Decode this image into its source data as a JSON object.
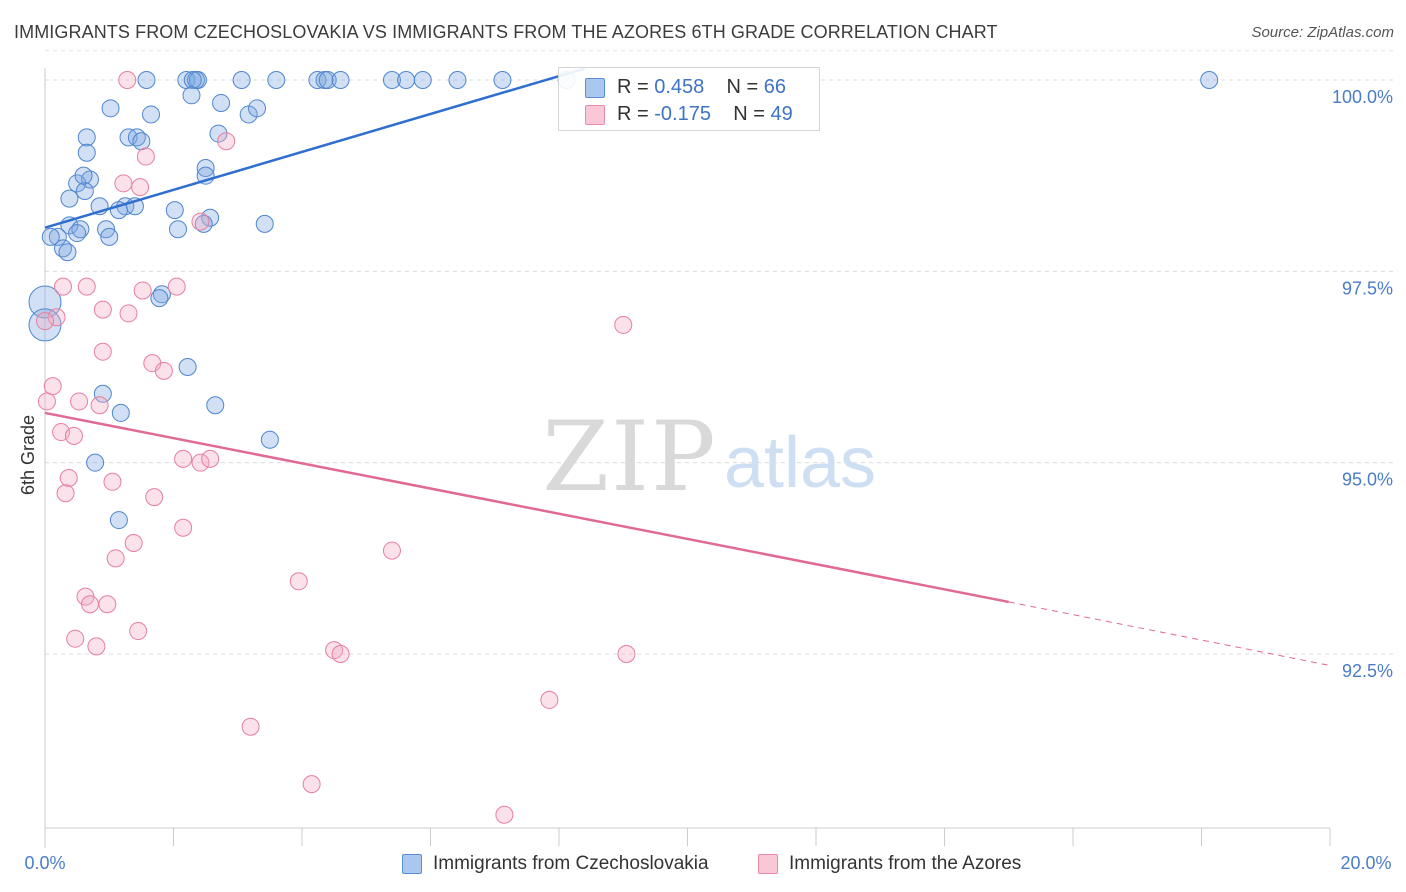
{
  "title": "IMMIGRANTS FROM CZECHOSLOVAKIA VS IMMIGRANTS FROM THE AZORES 6TH GRADE CORRELATION CHART",
  "source": "Source: ZipAtlas.com",
  "watermark": {
    "zip": "ZIP",
    "atlas": "atlas"
  },
  "legend": {
    "rows": [
      {
        "r_label": "R = ",
        "r_value": "0.458",
        "n_label": "N = ",
        "n_value": "66"
      },
      {
        "r_label": "R = ",
        "r_value": "-0.175",
        "n_label": "N = ",
        "n_value": "49"
      }
    ]
  },
  "chart_data": {
    "type": "scatter",
    "title": "IMMIGRANTS FROM CZECHOSLOVAKIA VS IMMIGRANTS FROM THE AZORES 6TH GRADE CORRELATION CHART",
    "xlabel": "",
    "ylabel": "6th Grade",
    "xlim": [
      0,
      20
    ],
    "ylim": [
      90.0,
      100.5
    ],
    "x_tick_labels": [
      "0.0%",
      "20.0%"
    ],
    "y_ticks": [
      92.5,
      95.0,
      97.5,
      100.0
    ],
    "y_tick_labels": [
      "92.5%",
      "95.0%",
      "97.5%",
      "100.0%"
    ],
    "grid": true,
    "series": [
      {
        "name": "Immigrants from Czechoslovakia",
        "color": "#7aa6e0",
        "stroke": "#4f86d0",
        "trend": {
          "x1": 0.0,
          "y1": 98.07,
          "x2": 8.4,
          "y2": 100.15,
          "color": "#2f6fcf"
        },
        "points": [
          [
            1.58,
            100.0
          ],
          [
            2.2,
            100.0
          ],
          [
            2.35,
            100.0
          ],
          [
            2.38,
            100.0
          ],
          [
            3.06,
            100.0
          ],
          [
            3.6,
            100.0
          ],
          [
            4.24,
            100.0
          ],
          [
            4.35,
            100.0
          ],
          [
            4.4,
            100.0
          ],
          [
            4.6,
            100.0
          ],
          [
            5.4,
            100.0
          ],
          [
            5.62,
            100.0
          ],
          [
            5.88,
            100.0
          ],
          [
            6.42,
            100.0
          ],
          [
            7.12,
            100.0
          ],
          [
            8.12,
            100.0
          ],
          [
            18.12,
            100.0
          ],
          [
            2.3,
            100.0
          ],
          [
            2.28,
            99.8
          ],
          [
            1.65,
            99.55
          ],
          [
            2.74,
            99.7
          ],
          [
            3.17,
            99.55
          ],
          [
            2.7,
            99.3
          ],
          [
            1.3,
            99.25
          ],
          [
            1.43,
            99.25
          ],
          [
            1.5,
            99.2
          ],
          [
            0.65,
            99.25
          ],
          [
            0.65,
            99.05
          ],
          [
            2.5,
            98.85
          ],
          [
            2.5,
            98.75
          ],
          [
            0.7,
            98.7
          ],
          [
            0.5,
            98.65
          ],
          [
            0.38,
            98.45
          ],
          [
            0.62,
            98.55
          ],
          [
            0.85,
            98.35
          ],
          [
            1.25,
            98.35
          ],
          [
            1.4,
            98.35
          ],
          [
            1.15,
            98.3
          ],
          [
            2.02,
            98.3
          ],
          [
            2.57,
            98.2
          ],
          [
            0.38,
            98.1
          ],
          [
            0.55,
            98.05
          ],
          [
            0.5,
            98.0
          ],
          [
            0.95,
            98.05
          ],
          [
            1.0,
            97.95
          ],
          [
            2.07,
            98.05
          ],
          [
            0.2,
            97.95
          ],
          [
            0.28,
            97.8
          ],
          [
            0.35,
            97.75
          ],
          [
            1.82,
            97.2
          ],
          [
            1.78,
            97.15
          ],
          [
            0.0,
            97.1
          ],
          [
            0.0,
            96.8
          ],
          [
            2.22,
            96.25
          ],
          [
            0.9,
            95.9
          ],
          [
            2.65,
            95.75
          ],
          [
            1.18,
            95.65
          ],
          [
            3.5,
            95.3
          ],
          [
            0.78,
            95.0
          ],
          [
            1.15,
            94.25
          ],
          [
            3.42,
            98.12
          ],
          [
            2.47,
            98.12
          ],
          [
            0.09,
            97.95
          ],
          [
            1.02,
            99.63
          ],
          [
            3.3,
            99.63
          ],
          [
            0.6,
            98.75
          ]
        ],
        "sizes": {
          "large": [
            [
              0.0,
              97.1
            ],
            [
              0.0,
              96.8
            ]
          ]
        }
      },
      {
        "name": "Immigrants from the Azores",
        "color": "#f4a8c0",
        "stroke": "#e77fa0",
        "trend": {
          "x1": 0.0,
          "y1": 95.65,
          "x2": 15.0,
          "y2": 93.18,
          "color": "#e06a95",
          "dash_to": {
            "x": 20.0,
            "y": 92.35
          }
        },
        "points": [
          [
            1.28,
            100.0
          ],
          [
            2.82,
            99.2
          ],
          [
            1.57,
            99.0
          ],
          [
            1.22,
            98.65
          ],
          [
            1.48,
            98.6
          ],
          [
            2.42,
            98.15
          ],
          [
            0.28,
            97.3
          ],
          [
            0.65,
            97.3
          ],
          [
            1.52,
            97.25
          ],
          [
            2.05,
            97.3
          ],
          [
            0.9,
            97.0
          ],
          [
            1.3,
            96.95
          ],
          [
            9.0,
            96.8
          ],
          [
            0.18,
            96.9
          ],
          [
            0.9,
            96.45
          ],
          [
            1.67,
            96.3
          ],
          [
            1.85,
            96.2
          ],
          [
            0.12,
            96.0
          ],
          [
            0.03,
            95.8
          ],
          [
            0.53,
            95.8
          ],
          [
            0.85,
            95.75
          ],
          [
            0.25,
            95.4
          ],
          [
            0.45,
            95.35
          ],
          [
            2.15,
            95.05
          ],
          [
            2.42,
            95.0
          ],
          [
            2.57,
            95.05
          ],
          [
            0.37,
            94.8
          ],
          [
            1.05,
            94.75
          ],
          [
            0.32,
            94.6
          ],
          [
            1.7,
            94.55
          ],
          [
            2.15,
            94.15
          ],
          [
            5.4,
            93.85
          ],
          [
            1.38,
            93.95
          ],
          [
            1.1,
            93.75
          ],
          [
            3.95,
            93.45
          ],
          [
            0.63,
            93.25
          ],
          [
            0.7,
            93.15
          ],
          [
            0.97,
            93.15
          ],
          [
            1.45,
            92.8
          ],
          [
            0.47,
            92.7
          ],
          [
            0.8,
            92.6
          ],
          [
            4.5,
            92.55
          ],
          [
            4.6,
            92.5
          ],
          [
            9.05,
            92.5
          ],
          [
            7.85,
            91.9
          ],
          [
            3.2,
            91.55
          ],
          [
            4.15,
            90.8
          ],
          [
            7.15,
            90.4
          ],
          [
            0.0,
            96.85
          ]
        ]
      }
    ]
  },
  "bottom_legend": [
    {
      "label": "Immigrants from Czechoslovakia",
      "color": "#aac8ef",
      "stroke": "#5b8fd6"
    },
    {
      "label": "Immigrants from the Azores",
      "color": "#f9c7d6",
      "stroke": "#e88aa8"
    }
  ]
}
